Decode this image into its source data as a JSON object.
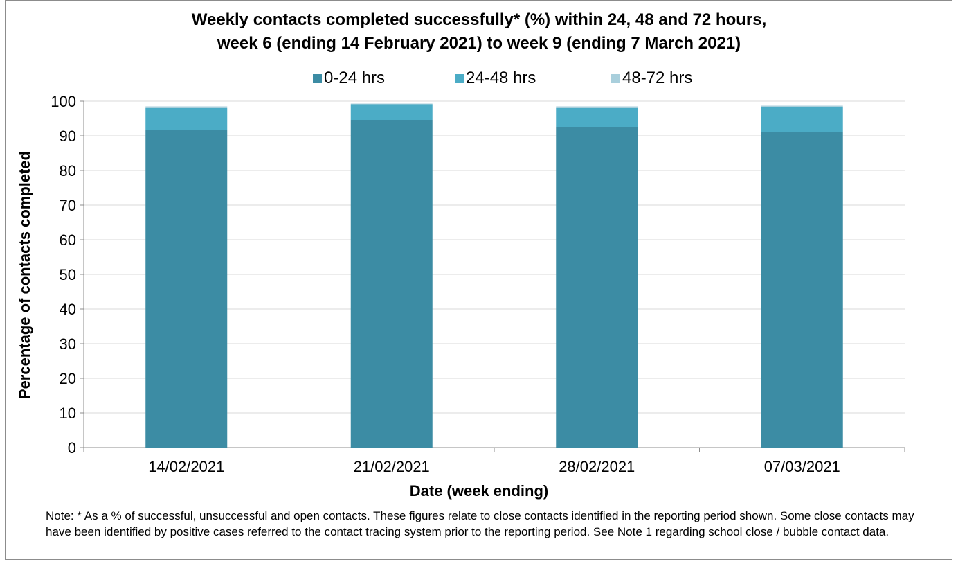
{
  "chart_data": {
    "type": "bar",
    "stacked": true,
    "title": [
      "Weekly contacts completed successfully* (%) within 24, 48 and 72 hours,",
      "week 6 (ending 14 February 2021) to week 9 (ending 7 March 2021)"
    ],
    "xlabel": "Date (week ending)",
    "ylabel": "Percentage of contacts completed",
    "categories": [
      "14/02/2021",
      "21/02/2021",
      "28/02/2021",
      "07/03/2021"
    ],
    "series": [
      {
        "name": "0-24 hrs",
        "color": "#3c8ca4",
        "values": [
          91.6,
          94.6,
          92.4,
          91.0
        ]
      },
      {
        "name": "24-48 hrs",
        "color": "#4bacc6",
        "values": [
          6.4,
          4.5,
          5.6,
          7.3
        ]
      },
      {
        "name": "48-72 hrs",
        "color": "#a9cfdc",
        "values": [
          0.5,
          0.2,
          0.5,
          0.4
        ]
      }
    ],
    "ylim": [
      0,
      100
    ],
    "yticks": [
      0,
      10,
      20,
      30,
      40,
      50,
      60,
      70,
      80,
      90,
      100
    ],
    "grid": true,
    "legend_position": "top"
  },
  "note": "Note: * As a % of successful, unsuccessful and open contacts. These figures relate to close contacts identified in the reporting period shown. Some close contacts may have been identified by positive cases referred to the contact tracing system prior to the reporting period. See Note 1 regarding school close / bubble contact data."
}
